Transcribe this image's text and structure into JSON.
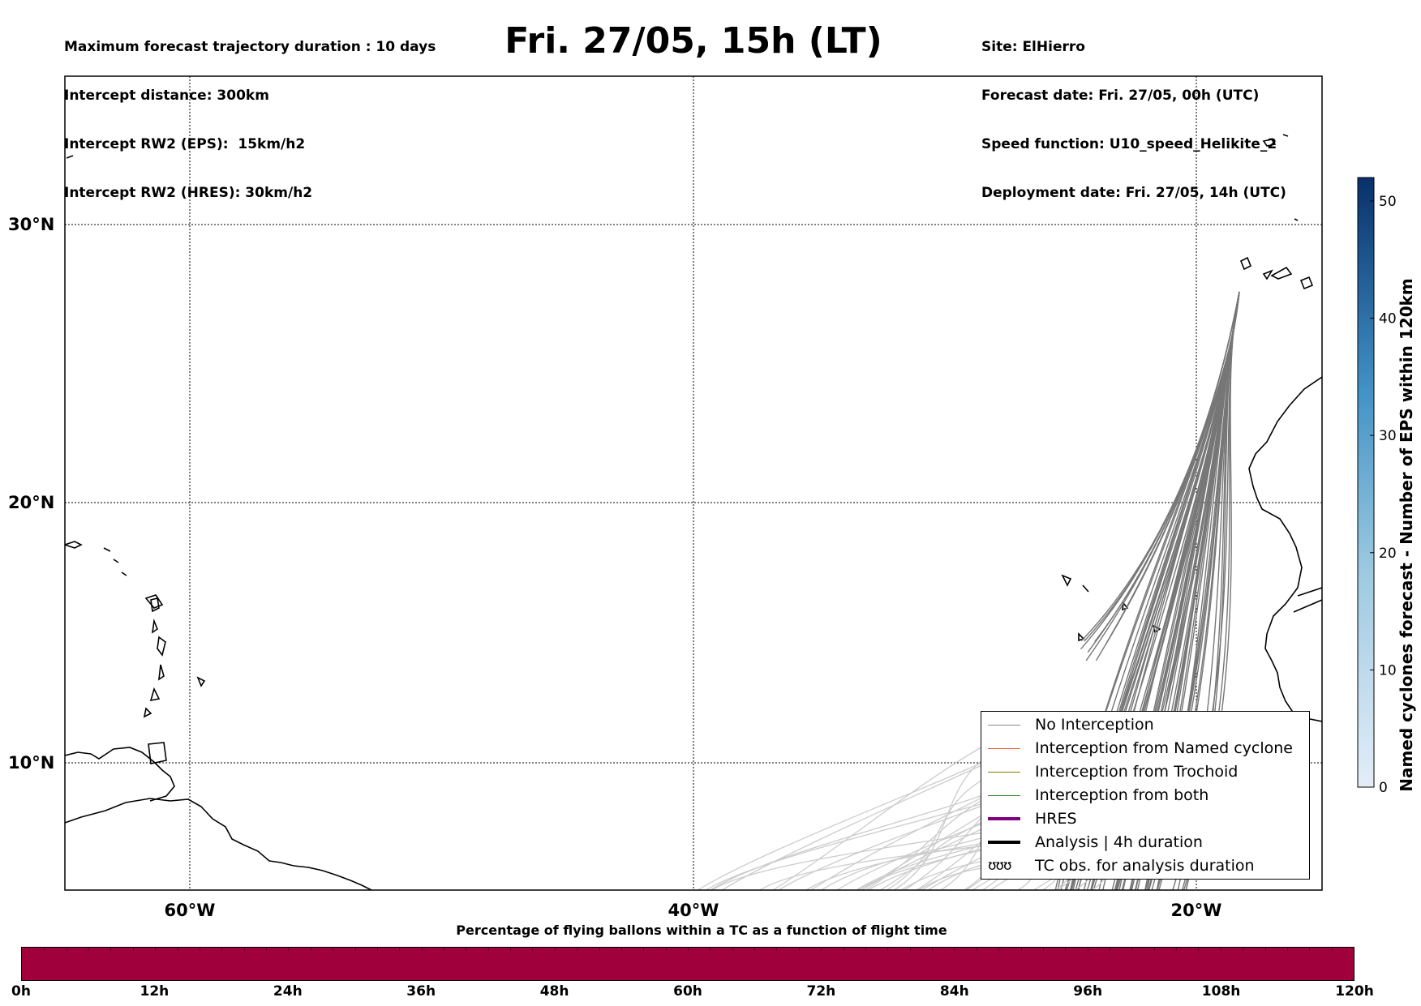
{
  "header_left": {
    "line1": "Maximum forecast trajectory duration : 10 days",
    "line2": "Intercept distance: 300km",
    "line3": "Intercept RW2 (EPS):  15km/h2",
    "line4": "Intercept RW2 (HRES): 30km/h2"
  },
  "title": "Fri. 27/05, 15h (LT)",
  "header_right": {
    "line1": "Site: ElHierro",
    "line2": "Forecast date: Fri. 27/05, 00h (UTC)",
    "line3": "Speed function: U10_speed_Helikite_2",
    "line4": "Deployment date: Fri. 27/05, 14h (UTC)"
  },
  "map": {
    "lat_labels": [
      "30°N",
      "20°N",
      "10°N"
    ],
    "lon_labels": [
      "60°W",
      "40°W",
      "20°W"
    ],
    "trajectory_color": "#777777",
    "faded_trajectory_color": "#cccccc",
    "coast_color": "#000000"
  },
  "legend": {
    "items": [
      {
        "label": "No Interception",
        "color": "#888888"
      },
      {
        "label": "Interception from Named cyclone",
        "color": "#e8602c"
      },
      {
        "label": "Interception from Trochoid",
        "color": "#808000"
      },
      {
        "label": "Interception from both",
        "color": "#2e8b2e"
      },
      {
        "label": "HRES",
        "color": "#800080"
      },
      {
        "label": "Analysis | 4h duration",
        "color": "#000000"
      },
      {
        "label": "TC obs. for analysis duration",
        "symbol": "ʊʊʊ"
      }
    ]
  },
  "colorbar": {
    "label": "Named cyclones forecast - Number of EPS within 120km",
    "ticks": [
      "0",
      "10",
      "20",
      "30",
      "40",
      "50"
    ],
    "min": 0,
    "max": 52,
    "color_low": "#e3edf8",
    "color_high": "#08306b"
  },
  "timebar": {
    "caption": "Percentage of flying ballons within a TC as a function of flight time",
    "ticks": [
      "0h",
      "12h",
      "24h",
      "36h",
      "48h",
      "60h",
      "72h",
      "84h",
      "96h",
      "108h",
      "120h"
    ],
    "fill_color": "#a0003c"
  }
}
